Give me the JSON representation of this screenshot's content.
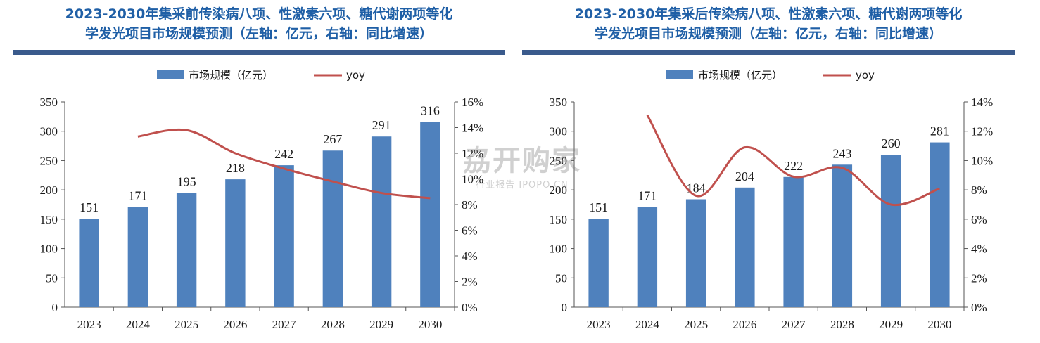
{
  "chart_data": [
    {
      "type": "bar",
      "title_lines": [
        "2023-2030年集采前传染病八项、性激素六项、糖代谢两项等化",
        "学发光项目市场规模预测（左轴：亿元，右轴：同比增速）"
      ],
      "categories": [
        "2023",
        "2024",
        "2025",
        "2026",
        "2027",
        "2028",
        "2029",
        "2030"
      ],
      "series": [
        {
          "name": "市场规模（亿元）",
          "type": "bar",
          "axis": "left",
          "color": "#4f81bd",
          "values": [
            151,
            171,
            195,
            218,
            242,
            267,
            291,
            316
          ]
        },
        {
          "name": "yoy",
          "type": "line",
          "axis": "right",
          "color": "#c0504d",
          "values": [
            null,
            0.133,
            0.138,
            0.12,
            0.108,
            0.098,
            0.089,
            0.085
          ]
        }
      ],
      "ylim_left": [
        0,
        350
      ],
      "yticks_left": [
        "0",
        "50",
        "100",
        "150",
        "200",
        "250",
        "300",
        "350"
      ],
      "ylim_right": [
        0,
        0.16
      ],
      "yticks_right": [
        "0%",
        "2%",
        "4%",
        "6%",
        "8%",
        "10%",
        "12%",
        "14%",
        "16%"
      ],
      "legend_position": "top",
      "grid": false
    },
    {
      "type": "bar",
      "title_lines": [
        "2023-2030年集采后传染病八项、性激素六项、糖代谢两项等化",
        "学发光项目市场规模预测（左轴：亿元，右轴：同比增速）"
      ],
      "categories": [
        "2023",
        "2024",
        "2025",
        "2026",
        "2027",
        "2028",
        "2029",
        "2030"
      ],
      "series": [
        {
          "name": "市场规模（亿元）",
          "type": "bar",
          "axis": "left",
          "color": "#4f81bd",
          "values": [
            151,
            171,
            184,
            204,
            222,
            243,
            260,
            281
          ]
        },
        {
          "name": "yoy",
          "type": "line",
          "axis": "right",
          "color": "#c0504d",
          "values": [
            null,
            0.131,
            0.076,
            0.109,
            0.089,
            0.095,
            0.07,
            0.081
          ]
        }
      ],
      "ylim_left": [
        0,
        350
      ],
      "yticks_left": [
        "0",
        "50",
        "100",
        "150",
        "200",
        "250",
        "300",
        "350"
      ],
      "ylim_right": [
        0,
        0.14
      ],
      "yticks_right": [
        "0%",
        "2%",
        "4%",
        "6%",
        "8%",
        "10%",
        "12%",
        "14%"
      ],
      "legend_position": "top",
      "grid": false
    }
  ],
  "watermark": {
    "main": "劦开购家",
    "sub": "行业报告 IPOPO.CN"
  }
}
